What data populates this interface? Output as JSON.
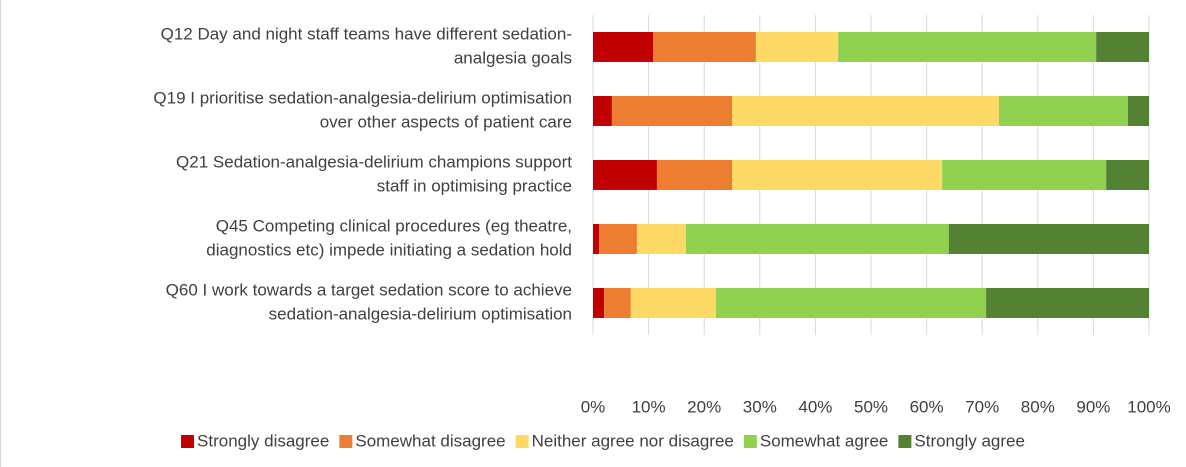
{
  "chart_data": {
    "type": "stacked_bar_horizontal",
    "categories": [
      [
        "Q12 Day and night staff teams have different sedation-",
        "analgesia goals"
      ],
      [
        "Q19 I prioritise sedation-analgesia-delirium optimisation",
        "over other aspects of patient care"
      ],
      [
        "Q21 Sedation-analgesia-delirium champions support",
        "staff in optimising practice"
      ],
      [
        "Q45 Competing clinical procedures (eg theatre,",
        "diagnostics etc) impede initiating a sedation hold"
      ],
      [
        "Q60 I work towards a target sedation score to achieve",
        "sedation-analgesia-delirium optimisation"
      ]
    ],
    "series": [
      {
        "name": "Strongly disagree",
        "color": "#c00000",
        "values": [
          10.8,
          3.4,
          11.5,
          1.1,
          2.0
        ]
      },
      {
        "name": "Somewhat disagree",
        "color": "#ed7d31",
        "values": [
          18.5,
          21.6,
          13.5,
          6.8,
          4.8
        ]
      },
      {
        "name": "Neither agree nor disagree",
        "color": "#ffd966",
        "values": [
          14.8,
          48.0,
          37.8,
          8.8,
          15.3
        ]
      },
      {
        "name": "Somewhat agree",
        "color": "#92d050",
        "values": [
          46.4,
          23.2,
          29.5,
          47.3,
          48.6
        ]
      },
      {
        "name": "Strongly agree",
        "color": "#548235",
        "values": [
          9.5,
          3.8,
          7.7,
          36.0,
          29.3
        ]
      }
    ],
    "xlim": [
      0,
      100
    ],
    "xticks": [
      {
        "value": 0,
        "label": "0%"
      },
      {
        "value": 10,
        "label": "10%"
      },
      {
        "value": 20,
        "label": "20%"
      },
      {
        "value": 30,
        "label": "30%"
      },
      {
        "value": 40,
        "label": "40%"
      },
      {
        "value": 50,
        "label": "50%"
      },
      {
        "value": 60,
        "label": "60%"
      },
      {
        "value": 70,
        "label": "70%"
      },
      {
        "value": 80,
        "label": "80%"
      },
      {
        "value": 90,
        "label": "90%"
      },
      {
        "value": 100,
        "label": "100%"
      }
    ],
    "grid": true,
    "legend": "bottom"
  }
}
